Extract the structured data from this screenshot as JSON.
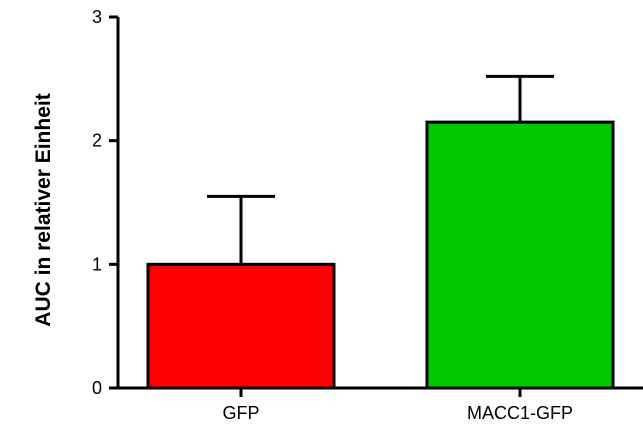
{
  "chart_data": {
    "type": "bar",
    "title": "",
    "xlabel": "",
    "ylabel": "AUC in relativer Einheit",
    "ylim": [
      0,
      3
    ],
    "yticks": [
      0,
      1,
      2,
      3
    ],
    "categories": [
      "GFP",
      "MACC1-GFP"
    ],
    "values": [
      1.0,
      2.15
    ],
    "error_upper": [
      0.55,
      0.37
    ],
    "colors": [
      "#ff0000",
      "#00c800"
    ],
    "grid": false,
    "legend": "none"
  }
}
